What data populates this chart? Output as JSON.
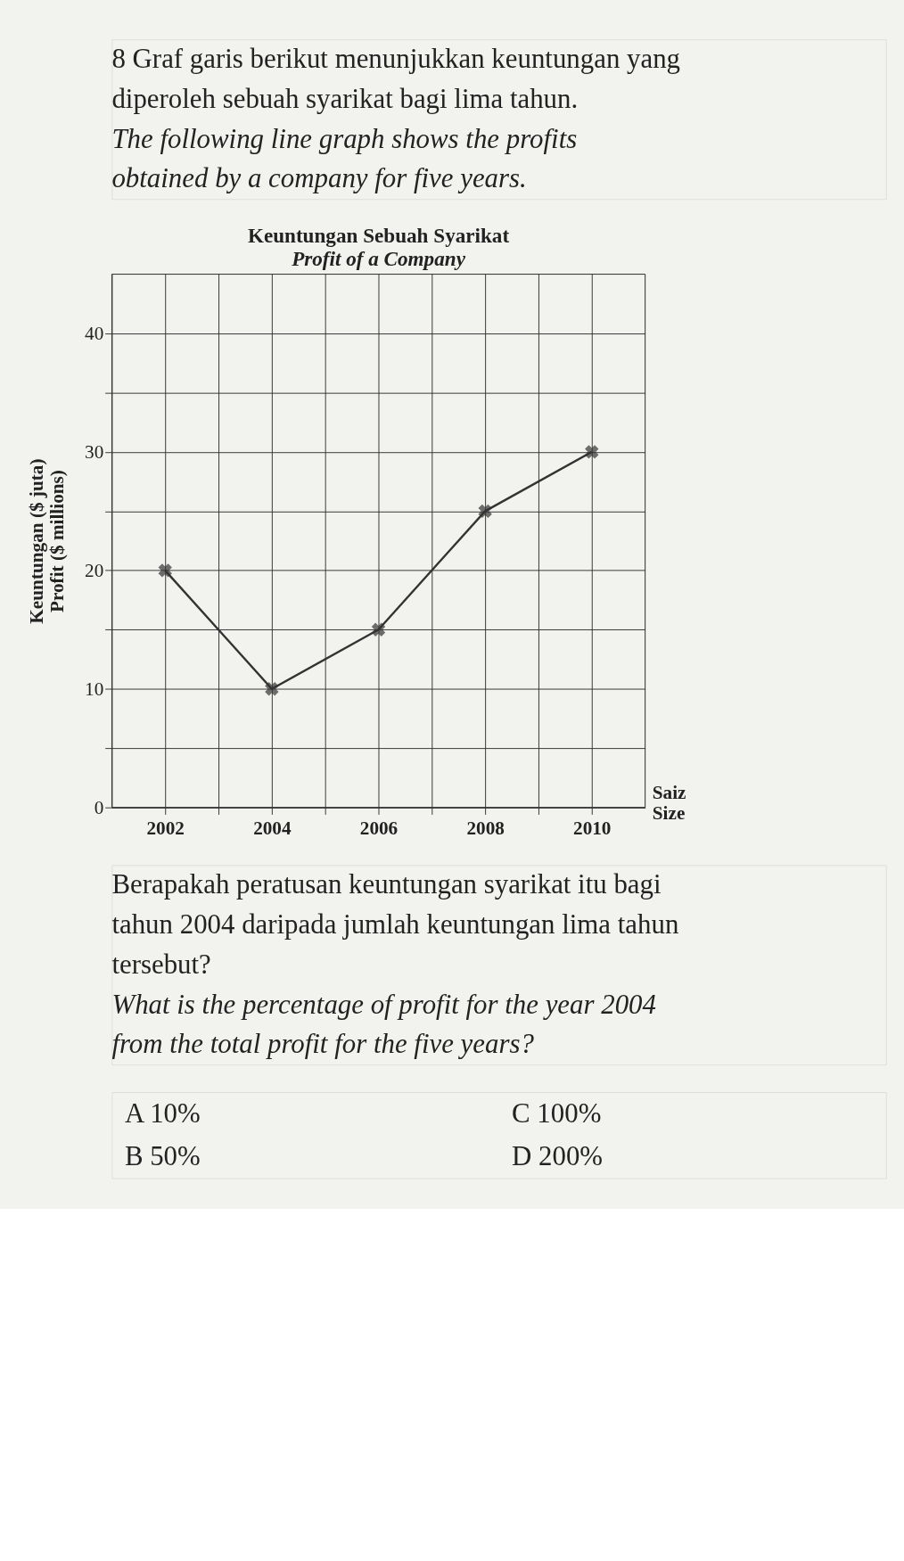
{
  "chart_data": {
    "type": "line",
    "title": "Keuntungan Sebuah Syarikat",
    "subtitle": "Profit of a Company",
    "xlabel": "Saiz\nSize",
    "ylabel": "Keuntungan ($ juta)\nProfit ($ millions)",
    "x": [
      2002,
      2004,
      2006,
      2008,
      2010
    ],
    "series": [
      {
        "color": "#333333",
        "values": [
          20,
          10,
          15,
          25,
          30
        ]
      }
    ],
    "xlim": [
      2001,
      2011
    ],
    "xticks": [
      2002,
      {
        "value": 2003,
        "label": null
      },
      2004,
      {
        "value": 2005,
        "label": null
      },
      2006,
      {
        "value": 2007,
        "label": null
      },
      2008,
      {
        "value": 2009,
        "label": null
      },
      2010
    ],
    "ylim": [
      0,
      45
    ],
    "yticks": [
      0,
      {
        "value": 5,
        "label": null
      },
      10,
      {
        "value": 15,
        "label": null
      },
      20,
      {
        "value": 25,
        "label": null
      },
      30,
      {
        "value": 35,
        "label": null
      },
      40
    ],
    "grid": true,
    "marker": "cross",
    "line_style": "solid",
    "annotations": [
      "8 Graf garis berikut menunjukkan keuntungan yang diperoleh sebuah syarikat bagi lima tahun.",
      "The following line graph shows the profits obtained by a company for five years.",
      "Berapakah peratusan keuntungan syarikat itu bagi tahun 2004 daripada jumlah keuntungan lima tahun tersebut?",
      "What is the percentage of profit for the year 2004 from the total profit for the five years?",
      "A  10%",
      "B  50%",
      "C  100%",
      "D  200%"
    ]
  }
}
